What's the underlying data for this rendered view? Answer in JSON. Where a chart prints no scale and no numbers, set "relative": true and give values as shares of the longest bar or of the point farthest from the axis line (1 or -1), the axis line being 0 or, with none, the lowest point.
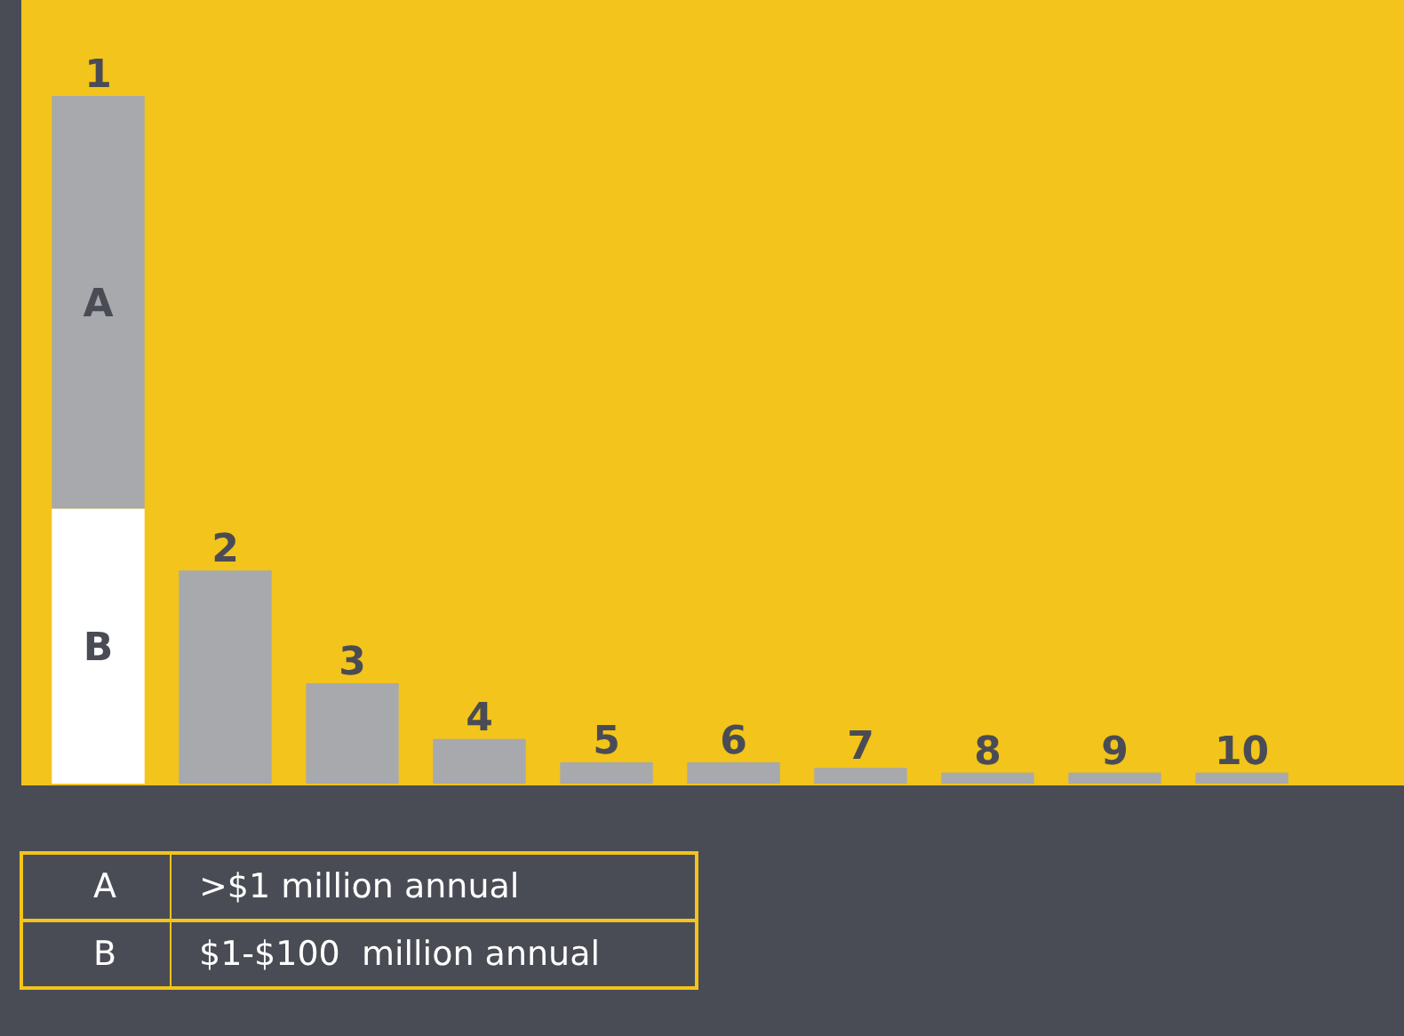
{
  "chart_data": {
    "type": "bar",
    "relative": true,
    "stacked": true,
    "legend": "bottom left",
    "categories": [
      "1",
      "2",
      "3",
      "4",
      "5",
      "6",
      "7",
      "8",
      "9",
      "10"
    ],
    "series": [
      {
        "name": "B",
        "color": "#ffffff",
        "values": [
          0.4,
          null,
          null,
          null,
          null,
          null,
          null,
          null,
          null,
          null
        ]
      },
      {
        "name": "A",
        "color": "#a7a9ac",
        "values": [
          0.6,
          0.31,
          0.146,
          0.065,
          0.031,
          0.031,
          0.023,
          0.016,
          0.016,
          0.016
        ]
      }
    ],
    "annotations": [
      "$1-$100  million annual",
      ">$1 million annual"
    ]
  }
}
